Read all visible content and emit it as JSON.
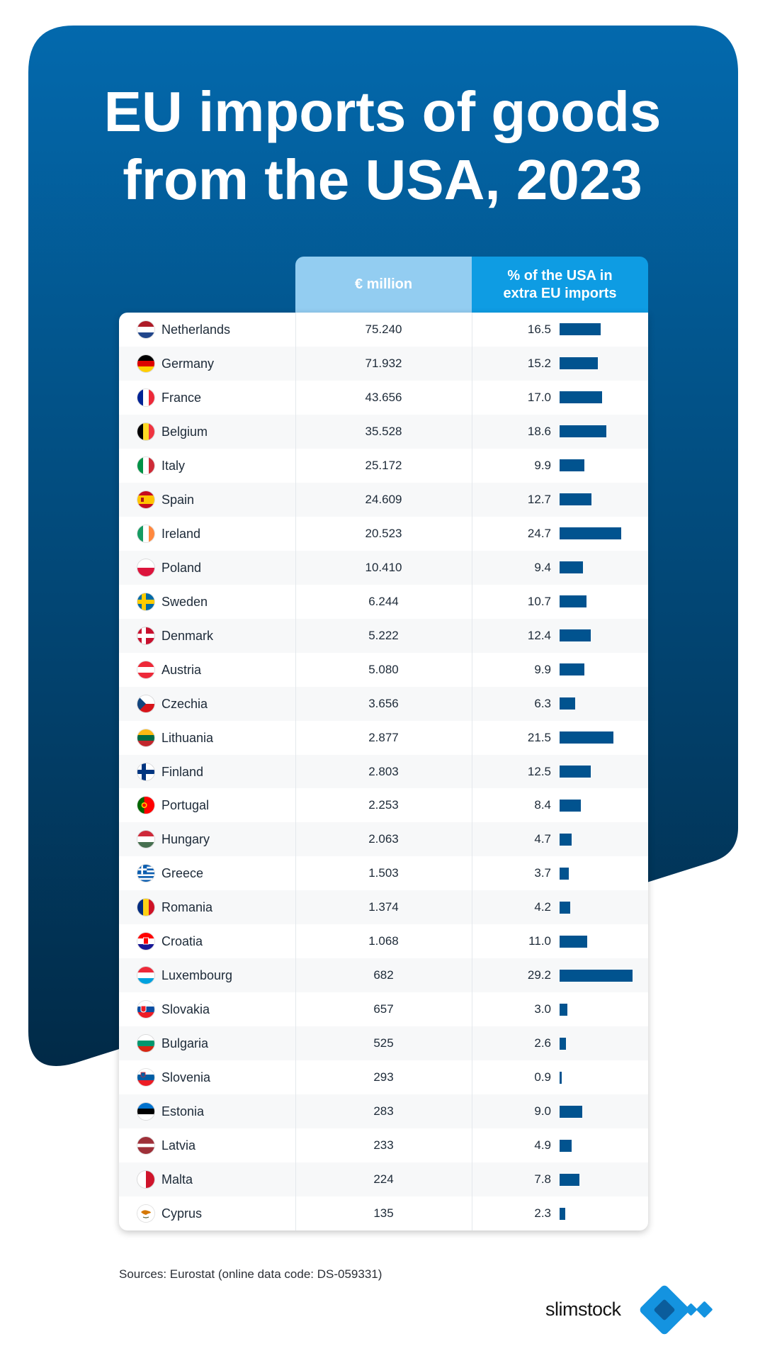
{
  "chart_data": {
    "type": "table",
    "title": "EU imports of goods from the USA, 2023",
    "columns": [
      "",
      "€ million",
      "% of the USA in extra EU imports"
    ],
    "rows": [
      {
        "country": "Netherlands",
        "flag": "netherlands-flag-icon",
        "million": "75.240",
        "pct": 16.5
      },
      {
        "country": "Germany",
        "flag": "germany-flag-icon",
        "million": "71.932",
        "pct": 15.2
      },
      {
        "country": "France",
        "flag": "france-flag-icon",
        "million": "43.656",
        "pct": 17.0
      },
      {
        "country": "Belgium",
        "flag": "belgium-flag-icon",
        "million": "35.528",
        "pct": 18.6
      },
      {
        "country": "Italy",
        "flag": "italy-flag-icon",
        "million": "25.172",
        "pct": 9.9
      },
      {
        "country": "Spain",
        "flag": "spain-flag-icon",
        "million": "24.609",
        "pct": 12.7
      },
      {
        "country": "Ireland",
        "flag": "ireland-flag-icon",
        "million": "20.523",
        "pct": 24.7
      },
      {
        "country": "Poland",
        "flag": "poland-flag-icon",
        "million": "10.410",
        "pct": 9.4
      },
      {
        "country": "Sweden",
        "flag": "sweden-flag-icon",
        "million": "6.244",
        "pct": 10.7
      },
      {
        "country": "Denmark",
        "flag": "denmark-flag-icon",
        "million": "5.222",
        "pct": 12.4
      },
      {
        "country": "Austria",
        "flag": "austria-flag-icon",
        "million": "5.080",
        "pct": 9.9
      },
      {
        "country": "Czechia",
        "flag": "czechia-flag-icon",
        "million": "3.656",
        "pct": 6.3
      },
      {
        "country": "Lithuania",
        "flag": "lithuania-flag-icon",
        "million": "2.877",
        "pct": 21.5
      },
      {
        "country": "Finland",
        "flag": "finland-flag-icon",
        "million": "2.803",
        "pct": 12.5
      },
      {
        "country": "Portugal",
        "flag": "portugal-flag-icon",
        "million": "2.253",
        "pct": 8.4
      },
      {
        "country": "Hungary",
        "flag": "hungary-flag-icon",
        "million": "2.063",
        "pct": 4.7
      },
      {
        "country": "Greece",
        "flag": "greece-flag-icon",
        "million": "1.503",
        "pct": 3.7
      },
      {
        "country": "Romania",
        "flag": "romania-flag-icon",
        "million": "1.374",
        "pct": 4.2
      },
      {
        "country": "Croatia",
        "flag": "croatia-flag-icon",
        "million": "1.068",
        "pct": 11.0
      },
      {
        "country": "Luxembourg",
        "flag": "luxembourg-flag-icon",
        "million": "682",
        "pct": 29.2
      },
      {
        "country": "Slovakia",
        "flag": "slovakia-flag-icon",
        "million": "657",
        "pct": 3.0
      },
      {
        "country": "Bulgaria",
        "flag": "bulgaria-flag-icon",
        "million": "525",
        "pct": 2.6
      },
      {
        "country": "Slovenia",
        "flag": "slovenia-flag-icon",
        "million": "293",
        "pct": 0.9
      },
      {
        "country": "Estonia",
        "flag": "estonia-flag-icon",
        "million": "283",
        "pct": 9.0
      },
      {
        "country": "Latvia",
        "flag": "latvia-flag-icon",
        "million": "233",
        "pct": 4.9
      },
      {
        "country": "Malta",
        "flag": "malta-flag-icon",
        "million": "224",
        "pct": 7.8
      },
      {
        "country": "Cyprus",
        "flag": "cyprus-flag-icon",
        "million": "135",
        "pct": 2.3
      }
    ],
    "bar_max": 30
  },
  "header": {
    "title": "EU imports of goods from the USA, 2023",
    "col_million": "€ million",
    "col_pct": "% of the USA in extra EU imports"
  },
  "footer": {
    "source": "Sources: Eurostat (online data code: DS-059331)",
    "brand": "slimstock",
    "brand_icon": "slimstock-logo-icon"
  },
  "colors": {
    "panel_top": "#0369ad",
    "panel_bottom": "#012a47",
    "bar": "#01538f",
    "head_light": "#93cdf1",
    "head_dark": "#0e9ce3",
    "brand_blue": "#1493e0"
  }
}
